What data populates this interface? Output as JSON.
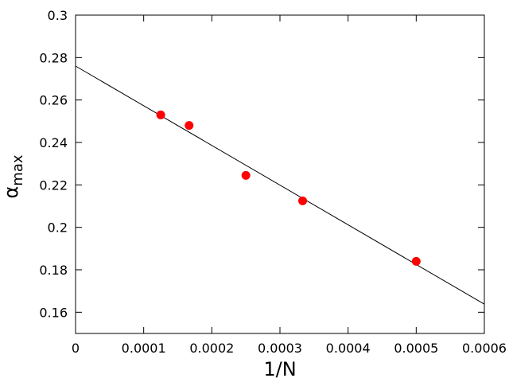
{
  "chart_data": {
    "type": "scatter",
    "xlabel": "1/N",
    "ylabel": "α",
    "ylabel_sub": "max",
    "series": [
      {
        "color": "#ff0000",
        "x": [
          0.000125,
          0.000166667,
          0.00025,
          0.000333333,
          0.0005
        ],
        "values": [
          0.253,
          0.248,
          0.2245,
          0.2125,
          0.184
        ]
      }
    ],
    "fit": {
      "color": "#000000",
      "x": [
        0,
        0.0006
      ],
      "values": [
        0.276,
        0.1638
      ]
    },
    "xlim": [
      0,
      0.0006
    ],
    "xticks": [
      0,
      0.0001,
      0.0002,
      0.0003,
      0.0004,
      0.0005,
      0.0006
    ],
    "ylim": [
      0.15,
      0.3
    ],
    "yticks": [
      0.16,
      0.18,
      0.2,
      0.22,
      0.24,
      0.26,
      0.28,
      0.3
    ]
  }
}
